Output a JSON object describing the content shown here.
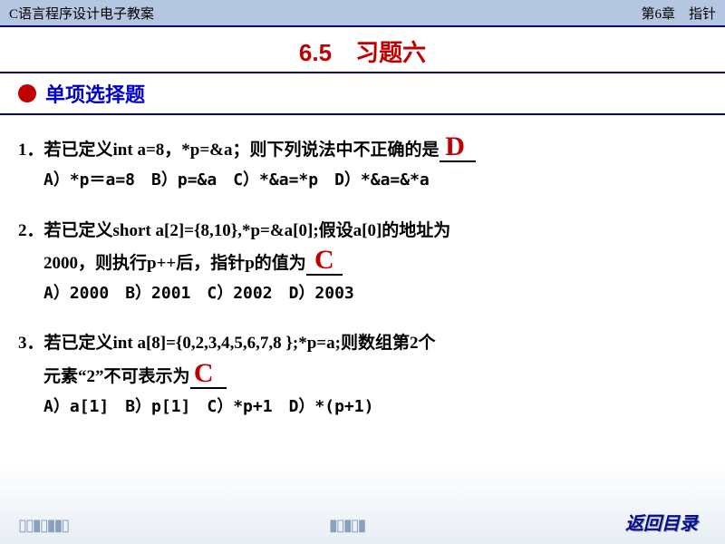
{
  "header": {
    "left": "C语言程序设计电子教案",
    "right": "第6章　指针"
  },
  "title": "6.5　习题六",
  "subtitle": "单项选择题",
  "questions": [
    {
      "num": "1．",
      "text": "若已定义int a=8，*p=&a；则下列说法中不正确的是",
      "answer": "D",
      "options": [
        "A）*p＝a=8",
        "B）p=&a",
        "C）*&a=*p",
        "D）*&a=&*a"
      ]
    },
    {
      "num": "2．",
      "textA": "若已定义short a[2]={8,10},*p=&a[0];假设a[0]的地址为",
      "textB": "2000，则执行p++后，指针p的值为",
      "answer": "C",
      "options": [
        "A）2000",
        "B）2001",
        "C）2002",
        "D）2003"
      ]
    },
    {
      "num": "3．",
      "textA": "若已定义int a[8]={0,2,3,4,5,6,7,8 };*p=a;则数组第2个",
      "textB": "元素“2”不可表示为",
      "answer": "C",
      "options": [
        "A）a[1]",
        "B）p[1]",
        "C）*p+1",
        "D）*(p+1)"
      ]
    }
  ],
  "footer": {
    "return": "返回目录"
  },
  "colors": {
    "header_bg": "#b5c7e0",
    "border": "#000080",
    "title_red": "#c00000",
    "subtitle_blue": "#0000cc",
    "answer_red": "#c00000",
    "return_blue": "#001090"
  }
}
